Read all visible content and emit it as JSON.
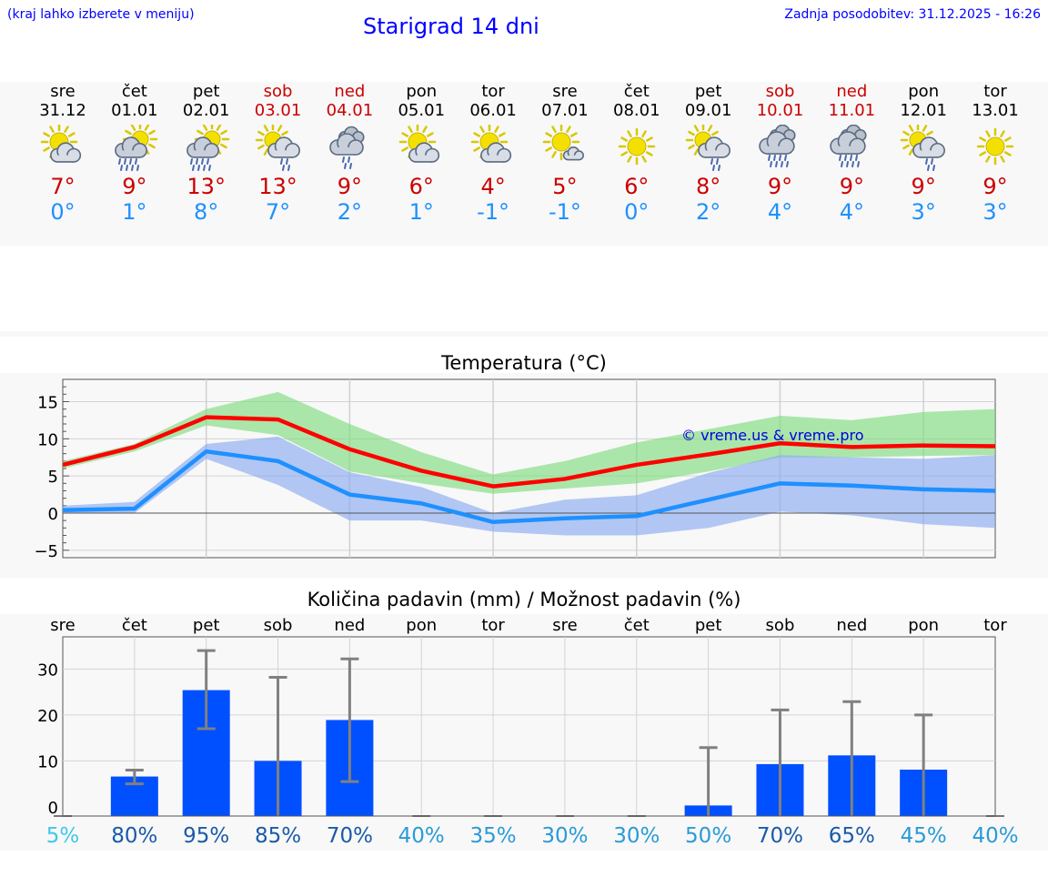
{
  "header": {
    "menu_hint": "(kraj lahko izberete v meniju)",
    "title": "Starigrad 14 dni",
    "last_update": "Zadnja posodobitev: 31.12.2025 - 16:26"
  },
  "days": [
    {
      "name": "sre",
      "date": "31.12",
      "weekend": false,
      "icon": "sun-cloud-icon",
      "tmax": "7°",
      "tmin": "0°"
    },
    {
      "name": "čet",
      "date": "01.01",
      "weekend": false,
      "icon": "sun-cloud-rain-icon",
      "tmax": "9°",
      "tmin": "1°"
    },
    {
      "name": "pet",
      "date": "02.01",
      "weekend": false,
      "icon": "sun-cloud-rain-icon",
      "tmax": "13°",
      "tmin": "8°"
    },
    {
      "name": "sob",
      "date": "03.01",
      "weekend": true,
      "icon": "sun-cloud-light-rain-icon",
      "tmax": "13°",
      "tmin": "7°"
    },
    {
      "name": "ned",
      "date": "04.01",
      "weekend": true,
      "icon": "cloud-light-rain-icon",
      "tmax": "9°",
      "tmin": "2°"
    },
    {
      "name": "pon",
      "date": "05.01",
      "weekend": false,
      "icon": "sun-cloud-icon",
      "tmax": "6°",
      "tmin": "1°"
    },
    {
      "name": "tor",
      "date": "06.01",
      "weekend": false,
      "icon": "sun-cloud-icon",
      "tmax": "4°",
      "tmin": "-1°"
    },
    {
      "name": "sre",
      "date": "07.01",
      "weekend": false,
      "icon": "sun-small-cloud-icon",
      "tmax": "5°",
      "tmin": "-1°"
    },
    {
      "name": "čet",
      "date": "08.01",
      "weekend": false,
      "icon": "sun-icon",
      "tmax": "6°",
      "tmin": "0°"
    },
    {
      "name": "pet",
      "date": "09.01",
      "weekend": false,
      "icon": "sun-cloud-light-rain-icon",
      "tmax": "8°",
      "tmin": "2°"
    },
    {
      "name": "sob",
      "date": "10.01",
      "weekend": true,
      "icon": "cloud-rain-icon",
      "tmax": "9°",
      "tmin": "4°"
    },
    {
      "name": "ned",
      "date": "11.01",
      "weekend": true,
      "icon": "cloud-rain-icon",
      "tmax": "9°",
      "tmin": "4°"
    },
    {
      "name": "pon",
      "date": "12.01",
      "weekend": false,
      "icon": "sun-cloud-light-rain-icon",
      "tmax": "9°",
      "tmin": "3°"
    },
    {
      "name": "tor",
      "date": "13.01",
      "weekend": false,
      "icon": "sun-icon",
      "tmax": "9°",
      "tmin": "3°"
    }
  ],
  "colors": {
    "max_line": "#ff0000",
    "max_band": "#7fdb7f",
    "min_line": "#1e90ff",
    "min_band": "#8aaaf0",
    "bar": "#0050ff",
    "error_bar": "#808080",
    "prob_low": "#3fc8e8",
    "prob_mid": "#2a9ad8",
    "prob_high": "#1a5aa8"
  },
  "chart_data": [
    {
      "type": "line",
      "title": "Temperatura (°C)",
      "watermark": "© vreme.us & vreme.pro",
      "x": [
        0,
        1,
        2,
        3,
        4,
        5,
        6,
        7,
        8,
        9,
        10,
        11,
        12,
        13
      ],
      "ylim": [
        -6,
        18
      ],
      "yticks": [
        -5,
        0,
        5,
        10,
        15
      ],
      "ytick_labels": [
        "−5",
        "0",
        "5",
        "10",
        "15"
      ],
      "series": [
        {
          "name": "max",
          "values": [
            6.5,
            8.9,
            12.9,
            12.6,
            8.6,
            5.7,
            3.6,
            4.6,
            6.5,
            7.9,
            9.4,
            8.9,
            9.1,
            9.0
          ],
          "band_low": [
            6.0,
            8.3,
            11.8,
            10.5,
            5.6,
            4.0,
            2.6,
            3.3,
            4.0,
            5.6,
            7.5,
            7.5,
            7.7,
            7.8
          ],
          "band_high": [
            7.0,
            9.3,
            14.0,
            16.3,
            12.0,
            8.2,
            5.2,
            7.0,
            9.5,
            11.3,
            13.1,
            12.5,
            13.6,
            14.0
          ]
        },
        {
          "name": "min",
          "values": [
            0.4,
            0.6,
            8.3,
            7.0,
            2.5,
            1.3,
            -1.2,
            -0.7,
            -0.4,
            1.8,
            4.0,
            3.7,
            3.2,
            3.0
          ],
          "band_low": [
            0.0,
            0.0,
            7.3,
            3.8,
            -1.0,
            -1.0,
            -2.5,
            -3.0,
            -3.0,
            -2.0,
            0.2,
            -0.3,
            -1.5,
            -2.0
          ],
          "band_high": [
            1.0,
            1.5,
            9.3,
            10.3,
            5.5,
            3.5,
            0.0,
            1.8,
            2.4,
            5.4,
            7.8,
            7.5,
            7.3,
            7.8
          ]
        }
      ]
    },
    {
      "type": "bar",
      "title": "Količina padavin (mm) / Možnost padavin (%)",
      "categories": [
        "sre",
        "čet",
        "pet",
        "sob",
        "ned",
        "pon",
        "tor",
        "sre",
        "čet",
        "pet",
        "sob",
        "ned",
        "pon",
        "tor"
      ],
      "ylim": [
        -2,
        37
      ],
      "yticks": [
        0,
        10,
        20,
        30
      ],
      "ytick_labels": [
        "0",
        "10",
        "20",
        "30"
      ],
      "values": [
        0,
        6.6,
        25.4,
        10,
        18.9,
        0,
        0,
        0,
        0,
        0.3,
        9.3,
        11.2,
        8.1,
        0
      ],
      "err_low": [
        0,
        5.0,
        17.0,
        0,
        5.5,
        0,
        0,
        0,
        0,
        0,
        0,
        0,
        0,
        0
      ],
      "err_high": [
        0,
        8.0,
        34.0,
        28.2,
        32.2,
        0,
        0,
        0,
        0,
        12.9,
        21.1,
        22.9,
        20.0,
        0
      ],
      "probabilities": [
        "5%",
        "80%",
        "95%",
        "85%",
        "70%",
        "40%",
        "35%",
        "30%",
        "30%",
        "50%",
        "70%",
        "65%",
        "45%",
        "40%"
      ],
      "probability_values": [
        5,
        80,
        95,
        85,
        70,
        40,
        35,
        30,
        30,
        50,
        70,
        65,
        45,
        40
      ]
    }
  ]
}
